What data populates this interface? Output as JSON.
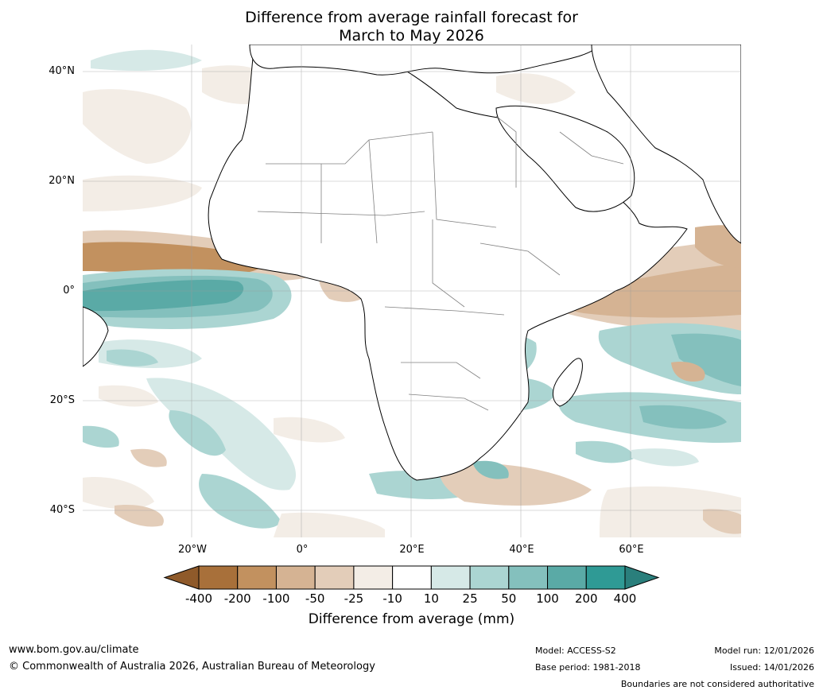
{
  "title": {
    "line1": "Difference from average rainfall forecast for",
    "line2": "March to May 2026"
  },
  "map": {
    "region": "Africa",
    "lat_labels": [
      "40°N",
      "20°N",
      "0°",
      "20°S",
      "40°S"
    ],
    "lon_labels": [
      "20°W",
      "0°",
      "20°E",
      "40°E",
      "60°E"
    ]
  },
  "legend": {
    "title": "Difference from average (mm)",
    "ticks": [
      "-400",
      "-200",
      "-100",
      "-50",
      "-25",
      "-10",
      "10",
      "25",
      "50",
      "100",
      "200",
      "400"
    ],
    "colors": [
      "#a8703a",
      "#c2915f",
      "#d5b393",
      "#e3cdb9",
      "#f3ede6",
      "#ffffff",
      "#d6e9e7",
      "#abd5d2",
      "#84c0bd",
      "#5aaaa6",
      "#2f9a95"
    ],
    "under_color": "#8f5a2a",
    "over_color": "#2a7f7c"
  },
  "footer": {
    "url": "www.bom.gov.au/climate",
    "copyright": "© Commonwealth of Australia 2026, Australian Bureau of Meteorology",
    "model": "Model: ACCESS-S2",
    "base_period": "Base period: 1981-2018",
    "model_run": "Model run: 12/01/2026",
    "issued": "Issued: 14/01/2026",
    "disclaimer": "Boundaries are not considered authoritative"
  }
}
